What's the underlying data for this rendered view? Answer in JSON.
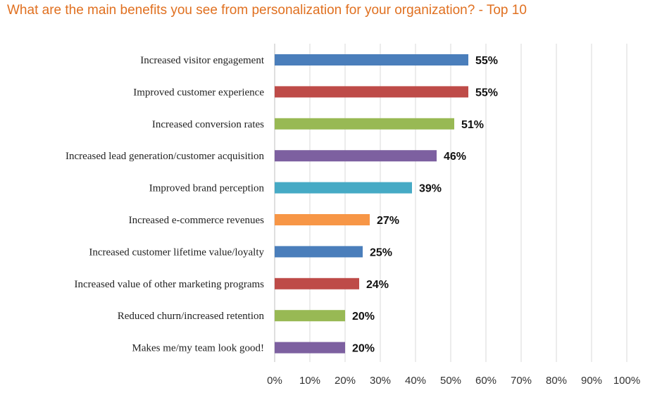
{
  "chart_data": {
    "type": "bar",
    "orientation": "horizontal",
    "title": "What are the main benefits you see from personalization for your organization? - Top 10",
    "categories": [
      "Increased visitor engagement",
      "Improved customer experience",
      "Increased conversion rates",
      "Increased lead generation/customer acquisition",
      "Improved brand perception",
      "Increased e-commerce revenues",
      "Increased customer lifetime value/loyalty",
      "Increased value of other marketing programs",
      "Reduced churn/increased retention",
      "Makes me/my team look good!"
    ],
    "values": [
      55,
      55,
      51,
      46,
      39,
      27,
      25,
      24,
      20,
      20
    ],
    "value_labels": [
      "55%",
      "55%",
      "51%",
      "46%",
      "39%",
      "27%",
      "25%",
      "24%",
      "20%",
      "20%"
    ],
    "colors": [
      "#4a7ebb",
      "#be4b48",
      "#98b954",
      "#7d60a0",
      "#46aac5",
      "#f79646",
      "#4a7ebb",
      "#be4b48",
      "#98b954",
      "#7d60a0"
    ],
    "xlim": [
      0,
      100
    ],
    "x_ticks": [
      "0%",
      "10%",
      "20%",
      "30%",
      "40%",
      "50%",
      "60%",
      "70%",
      "80%",
      "90%",
      "100%"
    ],
    "xlabel": "",
    "ylabel": "",
    "grid": true,
    "legend": "none"
  }
}
